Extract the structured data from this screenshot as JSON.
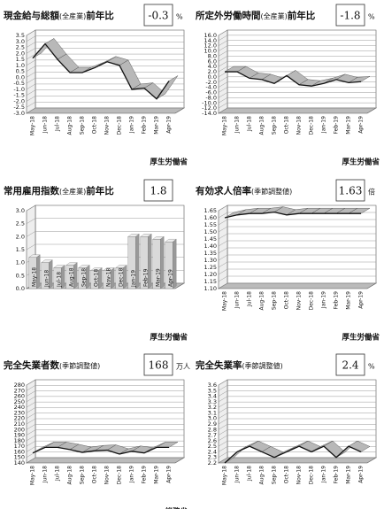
{
  "chart_data": [
    {
      "type": "line",
      "title": "現金給与総額",
      "qualifier": "(全産業)",
      "suffix": "前年比",
      "latest": -0.3,
      "unit": "%",
      "source": "厚生労働省",
      "categories": [
        "May-18",
        "Jun-18",
        "Jul-18",
        "Aug-18",
        "Sep-18",
        "Oct-18",
        "Nov-18",
        "Dec-18",
        "Jan-19",
        "Feb-19",
        "Mar-19",
        "Apr-19"
      ],
      "values": [
        1.6,
        2.8,
        1.5,
        0.4,
        0.4,
        0.8,
        1.3,
        1.0,
        -1.0,
        -0.9,
        -1.8,
        -0.3
      ],
      "ylim": [
        -3,
        3.5
      ],
      "yticks": [
        3.5,
        {
          "value": 3,
          "label": "3.0"
        },
        2.5,
        {
          "value": 2,
          "label": "2.0"
        },
        1.5,
        {
          "value": 1,
          "label": "1.0"
        },
        0.5,
        {
          "value": 0,
          "label": "0.0"
        },
        -0.5,
        {
          "value": -1,
          "label": "-1.0"
        },
        -1.5,
        {
          "value": -2,
          "label": "-2.0"
        },
        -2.5,
        {
          "value": -3,
          "label": "-3.0"
        }
      ],
      "color": "#b8b8b8"
    },
    {
      "type": "line",
      "title": "所定外労働時間",
      "qualifier": "(全産業)",
      "suffix": "前年比",
      "latest": -1.8,
      "unit": "%",
      "source": "厚生労働省",
      "categories": [
        "May-18",
        "Jun-18",
        "Jul-18",
        "Aug-18",
        "Sep-18",
        "Oct-18",
        "Nov-18",
        "Dec-18",
        "Jan-19",
        "Feb-19",
        "Mar-19",
        "Apr-19"
      ],
      "values": [
        2.0,
        2.0,
        -0.5,
        -1.0,
        -2.5,
        0.5,
        -3.0,
        -3.5,
        -2.5,
        -1.0,
        -2.2,
        -1.8
      ],
      "ylim": [
        -14,
        16
      ],
      "yticks": [
        {
          "value": 16,
          "label": "16.0"
        },
        {
          "value": 14,
          "label": "14.0"
        },
        {
          "value": 12,
          "label": "12.0"
        },
        {
          "value": 10,
          "label": "10.0"
        },
        {
          "value": 8,
          "label": "8.0"
        },
        {
          "value": 6,
          "label": "6.0"
        },
        {
          "value": 4,
          "label": "4.0"
        },
        {
          "value": 2,
          "label": "2.0"
        },
        {
          "value": 0,
          "label": "0.0"
        },
        {
          "value": -2,
          "label": "-2.0"
        },
        {
          "value": -4,
          "label": "-4.0"
        },
        {
          "value": -6,
          "label": "-6.0"
        },
        {
          "value": -8,
          "label": "-8.0"
        },
        {
          "value": -10,
          "label": "-10.0"
        },
        {
          "value": -12,
          "label": "-12.0"
        },
        {
          "value": -14,
          "label": "-14.0"
        }
      ],
      "color": "#b8b8b8"
    },
    {
      "type": "bar",
      "title": "常用雇用指数",
      "qualifier": "(全産業)",
      "suffix": "前年比",
      "latest": 1.8,
      "source": "厚生労働省",
      "categories": [
        "May-18",
        "Jun-18",
        "Jul-18",
        "Aug-18",
        "Sep-18",
        "Oct-18",
        "Nov-18",
        "Dec-18",
        "Jan-19",
        "Feb-19",
        "Mar-19",
        "Apr-19"
      ],
      "values": [
        1.2,
        1.0,
        0.8,
        0.9,
        0.8,
        0.7,
        0.7,
        0.8,
        2.0,
        2.0,
        1.9,
        1.8
      ],
      "ylim": [
        0,
        3
      ],
      "yticks": [
        {
          "value": 3,
          "label": "3.0"
        },
        2.5,
        {
          "value": 2,
          "label": "2.0"
        },
        1.5,
        {
          "value": 1,
          "label": "1.0"
        },
        0.5,
        {
          "value": 0,
          "label": "0.0"
        }
      ],
      "color": "#d9d9d9"
    },
    {
      "type": "line",
      "title": "有効求人倍率",
      "qualifier": "(季節調整値)",
      "latest": 1.63,
      "unit": "倍",
      "source": "厚生労働省",
      "categories": [
        "May-18",
        "Jun-18",
        "Jul-18",
        "Aug-18",
        "Sep-18",
        "Oct-18",
        "Nov-18",
        "Dec-18",
        "Jan-19",
        "Feb-19",
        "Mar-19",
        "Apr-19"
      ],
      "values": [
        1.6,
        1.62,
        1.63,
        1.63,
        1.64,
        1.62,
        1.63,
        1.63,
        1.63,
        1.63,
        1.63,
        1.63
      ],
      "ylim": [
        1.1,
        1.65
      ],
      "yticks": [
        1.65,
        {
          "value": 1.6,
          "label": "1.60"
        },
        1.55,
        {
          "value": 1.5,
          "label": "1.50"
        },
        1.45,
        {
          "value": 1.4,
          "label": "1.40"
        },
        1.35,
        {
          "value": 1.3,
          "label": "1.30"
        },
        1.25,
        {
          "value": 1.2,
          "label": "1.20"
        },
        1.15,
        {
          "value": 1.1,
          "label": "1.10"
        }
      ],
      "color": "#b8b8b8"
    },
    {
      "type": "line",
      "title": "完全失業者数",
      "qualifier": "(季節調整値)",
      "latest": 168,
      "unit": "万人",
      "source": "総務省",
      "categories": [
        "May-18",
        "Jun-18",
        "Jul-18",
        "Aug-18",
        "Sep-18",
        "Oct-18",
        "Nov-18",
        "Dec-18",
        "Jan-19",
        "Feb-19",
        "Mar-19",
        "Apr-19"
      ],
      "values": [
        158,
        168,
        168,
        164,
        159,
        162,
        163,
        156,
        161,
        158,
        168,
        168
      ],
      "ylim": [
        140,
        280
      ],
      "yticks": [
        280,
        270,
        260,
        250,
        240,
        230,
        220,
        210,
        200,
        190,
        180,
        170,
        160,
        150,
        140
      ],
      "color": "#b8b8b8"
    },
    {
      "type": "line",
      "title": "完全失業率",
      "qualifier": "(季節調整値)",
      "latest": 2.4,
      "unit": "%",
      "categories": [
        "May-18",
        "Jun-18",
        "Jul-18",
        "Aug-18",
        "Sep-18",
        "Oct-18",
        "Nov-18",
        "Dec-18",
        "Jan-19",
        "Feb-19",
        "Mar-19",
        "Apr-19"
      ],
      "values": [
        2.2,
        2.4,
        2.5,
        2.4,
        2.3,
        2.4,
        2.5,
        2.4,
        2.5,
        2.3,
        2.5,
        2.4
      ],
      "ylim": [
        2.2,
        3.6
      ],
      "yticks": [
        3.6,
        3.5,
        3.4,
        3.3,
        3.2,
        3.1,
        {
          "value": 3,
          "label": "3.0"
        },
        2.9,
        2.8,
        2.7,
        2.6,
        2.5,
        2.4,
        2.3,
        2.2
      ],
      "color": "#b8b8b8"
    }
  ]
}
